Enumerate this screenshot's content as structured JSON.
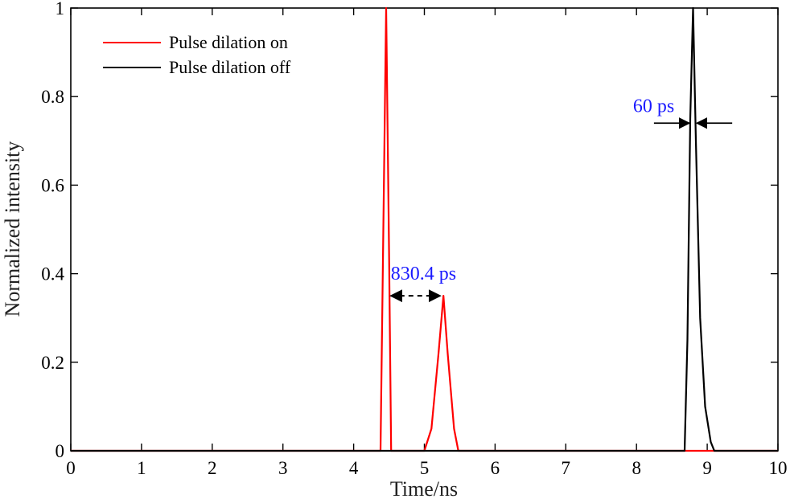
{
  "chart_data": {
    "type": "line",
    "xlabel": "Time/ns",
    "ylabel": "Normalized intensity",
    "xlim": [
      0,
      10
    ],
    "ylim": [
      0,
      1
    ],
    "x_ticks": [
      "0",
      "1",
      "2",
      "3",
      "4",
      "5",
      "6",
      "7",
      "8",
      "9",
      "10"
    ],
    "y_ticks": [
      "0",
      "0.2",
      "0.4",
      "0.6",
      "0.8",
      "1"
    ],
    "legend_position": "top-left",
    "series": [
      {
        "name": "Pulse dilation on",
        "color": "#ff0000",
        "x": [
          0,
          4.38,
          4.42,
          4.46,
          4.5,
          4.53,
          5.0,
          5.1,
          5.2,
          5.27,
          5.33,
          5.42,
          5.48,
          10
        ],
        "y": [
          0,
          0,
          0.5,
          1.0,
          0.45,
          0,
          0,
          0.05,
          0.22,
          0.35,
          0.22,
          0.05,
          0,
          0
        ]
      },
      {
        "name": "Pulse dilation off",
        "color": "#000000",
        "x": [
          0,
          8.68,
          8.72,
          8.76,
          8.8,
          8.84,
          8.9,
          8.97,
          9.05,
          9.1,
          10
        ],
        "y": [
          0,
          0,
          0.25,
          0.75,
          1.0,
          0.7,
          0.3,
          0.1,
          0.02,
          0,
          0
        ]
      }
    ],
    "annotations": [
      {
        "text": "830.4 ps",
        "color": "#1a1aff",
        "arrow_from": [
          4.48,
          0.35
        ],
        "arrow_to": [
          5.27,
          0.35
        ],
        "style": "double-dashed"
      },
      {
        "text": "60 ps",
        "color": "#1a1aff",
        "arrow_at": 0.74,
        "left_x": 8.77,
        "right_x": 8.83
      }
    ]
  }
}
